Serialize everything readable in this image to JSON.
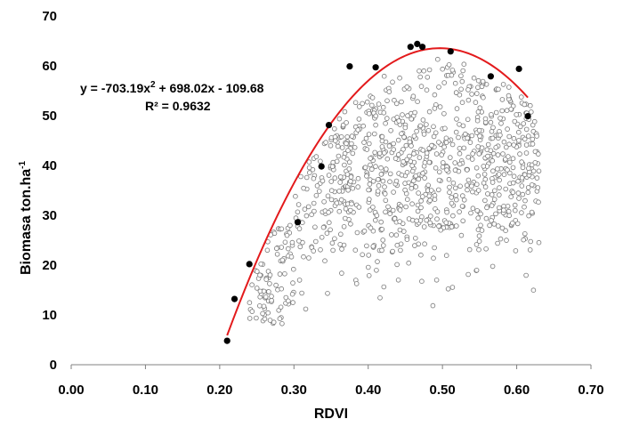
{
  "chart_data": {
    "type": "scatter",
    "xlabel": "RDVI",
    "ylabel_main": "Biomasa ton.ha",
    "ylabel_sup": "-1",
    "xlim": [
      0.0,
      0.7
    ],
    "ylim": [
      0,
      70
    ],
    "x_ticks": [
      "0.00",
      "0.10",
      "0.20",
      "0.30",
      "0.40",
      "0.50",
      "0.60",
      "0.70"
    ],
    "y_ticks": [
      "0",
      "10",
      "20",
      "30",
      "40",
      "50",
      "60",
      "70"
    ],
    "grid": false,
    "legend": "none",
    "annotation": {
      "eq_prefix": "y = -703.19x",
      "eq_sup": "2",
      "eq_suffix": " + 698.02x - 109.68",
      "r2": "R² = 0.9632"
    },
    "fit": {
      "type": "polynomial",
      "coefficients": {
        "a": -703.19,
        "b": 698.02,
        "c": -109.68
      },
      "x_range": [
        0.21,
        0.615
      ],
      "color": "#e31a1c"
    },
    "series": [
      {
        "marker": "filled-circle",
        "color": "#000000",
        "points": [
          [
            0.21,
            4.8
          ],
          [
            0.22,
            13.2
          ],
          [
            0.24,
            20.2
          ],
          [
            0.305,
            28.6
          ],
          [
            0.337,
            39.8
          ],
          [
            0.347,
            48.1
          ],
          [
            0.375,
            59.9
          ],
          [
            0.41,
            59.7
          ],
          [
            0.457,
            63.8
          ],
          [
            0.466,
            64.4
          ],
          [
            0.473,
            63.8
          ],
          [
            0.511,
            62.9
          ],
          [
            0.565,
            57.9
          ],
          [
            0.603,
            59.4
          ],
          [
            0.615,
            49.9
          ]
        ]
      },
      {
        "marker": "open-circle",
        "color": "#777777",
        "count_estimate": 1000
      }
    ]
  }
}
